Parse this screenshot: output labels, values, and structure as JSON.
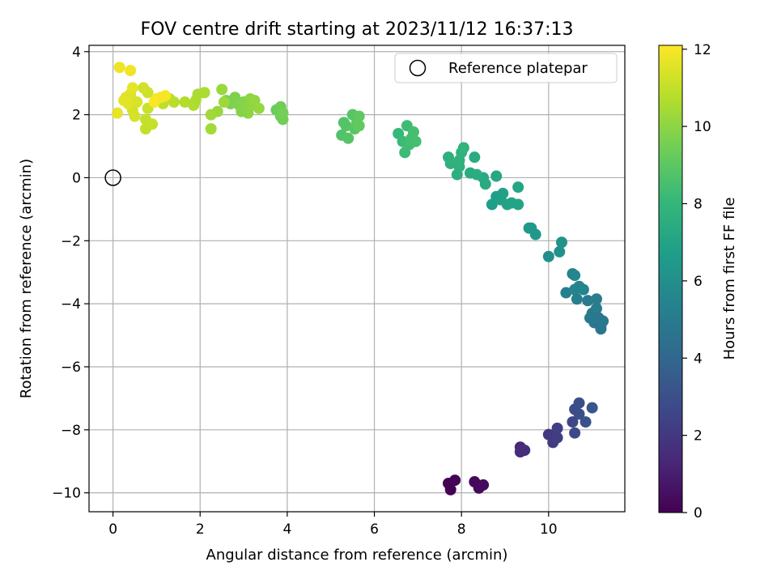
{
  "chart_data": {
    "type": "scatter",
    "title": "FOV centre drift starting at 2023/11/12 16:37:13",
    "xlabel": "Angular distance from reference (arcmin)",
    "ylabel": "Rotation from reference (arcmin)",
    "xlim": [
      -0.55,
      11.75
    ],
    "ylim": [
      -10.6,
      4.2
    ],
    "xticks": [
      0,
      2,
      4,
      6,
      8,
      10
    ],
    "yticks": [
      -10,
      -8,
      -6,
      -4,
      -2,
      0,
      2,
      4
    ],
    "tick_labels_x": [
      "0",
      "2",
      "4",
      "6",
      "8",
      "10"
    ],
    "tick_labels_y": [
      "−10",
      "−8",
      "−6",
      "−4",
      "−2",
      "0",
      "2",
      "4"
    ],
    "grid": true,
    "legend_position": "top-right",
    "legend_label": "Reference platepar",
    "reference_point": {
      "x": 0,
      "y": 0
    },
    "colorbar": {
      "label": "Hours from first FF file",
      "range": [
        0,
        12.1
      ],
      "ticks": [
        0,
        2,
        4,
        6,
        8,
        10,
        12
      ],
      "tick_labels": [
        "0",
        "2",
        "4",
        "6",
        "8",
        "10",
        "12"
      ],
      "colormap": "viridis"
    },
    "colormap_stops": [
      "#440154",
      "#482878",
      "#3e4989",
      "#31688e",
      "#26828e",
      "#1f9e89",
      "#35b779",
      "#6ece58",
      "#b5de2b",
      "#fde725"
    ],
    "points": [
      {
        "x": 7.7,
        "y": -9.7,
        "t": 0.0
      },
      {
        "x": 7.75,
        "y": -9.9,
        "t": 0.05
      },
      {
        "x": 7.85,
        "y": -9.6,
        "t": 0.1
      },
      {
        "x": 8.3,
        "y": -9.65,
        "t": 0.25
      },
      {
        "x": 8.4,
        "y": -9.85,
        "t": 0.3
      },
      {
        "x": 8.5,
        "y": -9.75,
        "t": 0.35
      },
      {
        "x": 9.35,
        "y": -8.55,
        "t": 1.4
      },
      {
        "x": 9.35,
        "y": -8.7,
        "t": 1.5
      },
      {
        "x": 9.45,
        "y": -8.65,
        "t": 1.6
      },
      {
        "x": 10.0,
        "y": -8.15,
        "t": 2.0
      },
      {
        "x": 10.1,
        "y": -8.4,
        "t": 2.1
      },
      {
        "x": 10.2,
        "y": -8.25,
        "t": 2.2
      },
      {
        "x": 10.2,
        "y": -7.95,
        "t": 2.3
      },
      {
        "x": 10.55,
        "y": -7.75,
        "t": 2.6
      },
      {
        "x": 10.6,
        "y": -8.1,
        "t": 2.7
      },
      {
        "x": 10.6,
        "y": -7.35,
        "t": 2.8
      },
      {
        "x": 10.7,
        "y": -7.5,
        "t": 2.9
      },
      {
        "x": 10.7,
        "y": -7.15,
        "t": 3.0
      },
      {
        "x": 10.85,
        "y": -7.75,
        "t": 3.1
      },
      {
        "x": 11.0,
        "y": -7.3,
        "t": 3.2
      },
      {
        "x": 10.4,
        "y": -3.65,
        "t": 5.2
      },
      {
        "x": 10.55,
        "y": -3.05,
        "t": 5.4
      },
      {
        "x": 10.6,
        "y": -3.55,
        "t": 5.5
      },
      {
        "x": 10.65,
        "y": -3.85,
        "t": 5.2
      },
      {
        "x": 10.7,
        "y": -3.45,
        "t": 5.4
      },
      {
        "x": 10.8,
        "y": -3.55,
        "t": 5.5
      },
      {
        "x": 10.9,
        "y": -3.9,
        "t": 5.0
      },
      {
        "x": 10.95,
        "y": -4.45,
        "t": 4.9
      },
      {
        "x": 11.0,
        "y": -4.3,
        "t": 4.95
      },
      {
        "x": 11.05,
        "y": -4.6,
        "t": 4.8
      },
      {
        "x": 11.1,
        "y": -4.15,
        "t": 5.0
      },
      {
        "x": 11.1,
        "y": -3.85,
        "t": 5.1
      },
      {
        "x": 11.15,
        "y": -4.45,
        "t": 4.85
      },
      {
        "x": 11.2,
        "y": -4.7,
        "t": 4.8
      },
      {
        "x": 11.2,
        "y": -4.8,
        "t": 4.75
      },
      {
        "x": 11.25,
        "y": -4.55,
        "t": 4.85
      },
      {
        "x": 10.6,
        "y": -3.1,
        "t": 5.6
      },
      {
        "x": 10.0,
        "y": -2.5,
        "t": 6.0
      },
      {
        "x": 10.25,
        "y": -2.35,
        "t": 6.1
      },
      {
        "x": 10.3,
        "y": -2.05,
        "t": 6.2
      },
      {
        "x": 9.6,
        "y": -1.6,
        "t": 6.4
      },
      {
        "x": 9.7,
        "y": -1.8,
        "t": 6.5
      },
      {
        "x": 9.55,
        "y": -1.6,
        "t": 6.45
      },
      {
        "x": 8.7,
        "y": -0.85,
        "t": 6.7
      },
      {
        "x": 8.8,
        "y": -0.6,
        "t": 6.8
      },
      {
        "x": 8.9,
        "y": -0.7,
        "t": 6.85
      },
      {
        "x": 8.95,
        "y": -0.5,
        "t": 6.9
      },
      {
        "x": 9.05,
        "y": -0.85,
        "t": 6.95
      },
      {
        "x": 9.15,
        "y": -0.8,
        "t": 7.0
      },
      {
        "x": 9.3,
        "y": -0.85,
        "t": 7.05
      },
      {
        "x": 9.3,
        "y": -0.3,
        "t": 7.1
      },
      {
        "x": 8.8,
        "y": 0.05,
        "t": 7.2
      },
      {
        "x": 8.5,
        "y": 0.0,
        "t": 7.3
      },
      {
        "x": 8.55,
        "y": -0.2,
        "t": 7.35
      },
      {
        "x": 8.2,
        "y": 0.15,
        "t": 7.4
      },
      {
        "x": 8.3,
        "y": 0.65,
        "t": 7.45
      },
      {
        "x": 8.35,
        "y": 0.1,
        "t": 7.5
      },
      {
        "x": 7.9,
        "y": 0.1,
        "t": 7.6
      },
      {
        "x": 7.7,
        "y": 0.65,
        "t": 7.65
      },
      {
        "x": 7.75,
        "y": 0.45,
        "t": 7.7
      },
      {
        "x": 7.95,
        "y": 0.55,
        "t": 7.75
      },
      {
        "x": 8.0,
        "y": 0.8,
        "t": 7.8
      },
      {
        "x": 8.05,
        "y": 0.95,
        "t": 7.85
      },
      {
        "x": 7.95,
        "y": 0.35,
        "t": 7.7
      },
      {
        "x": 6.55,
        "y": 1.4,
        "t": 8.1
      },
      {
        "x": 6.65,
        "y": 1.15,
        "t": 8.2
      },
      {
        "x": 6.7,
        "y": 0.8,
        "t": 8.25
      },
      {
        "x": 6.75,
        "y": 1.65,
        "t": 8.3
      },
      {
        "x": 6.8,
        "y": 1.05,
        "t": 8.35
      },
      {
        "x": 6.85,
        "y": 1.25,
        "t": 8.4
      },
      {
        "x": 6.9,
        "y": 1.45,
        "t": 8.45
      },
      {
        "x": 6.95,
        "y": 1.15,
        "t": 8.5
      },
      {
        "x": 5.25,
        "y": 1.35,
        "t": 8.7
      },
      {
        "x": 5.3,
        "y": 1.75,
        "t": 8.75
      },
      {
        "x": 5.35,
        "y": 1.65,
        "t": 8.8
      },
      {
        "x": 5.4,
        "y": 1.25,
        "t": 8.85
      },
      {
        "x": 5.5,
        "y": 2.0,
        "t": 8.9
      },
      {
        "x": 5.55,
        "y": 1.55,
        "t": 8.95
      },
      {
        "x": 5.6,
        "y": 1.75,
        "t": 9.0
      },
      {
        "x": 5.65,
        "y": 1.95,
        "t": 9.05
      },
      {
        "x": 5.65,
        "y": 1.65,
        "t": 9.1
      },
      {
        "x": 3.75,
        "y": 2.15,
        "t": 9.3
      },
      {
        "x": 3.85,
        "y": 1.95,
        "t": 9.35
      },
      {
        "x": 3.85,
        "y": 2.25,
        "t": 9.4
      },
      {
        "x": 3.9,
        "y": 1.85,
        "t": 9.45
      },
      {
        "x": 3.9,
        "y": 2.05,
        "t": 9.5
      },
      {
        "x": 2.6,
        "y": 2.45,
        "t": 9.6
      },
      {
        "x": 2.7,
        "y": 2.35,
        "t": 9.65
      },
      {
        "x": 2.8,
        "y": 2.55,
        "t": 9.7
      },
      {
        "x": 2.9,
        "y": 2.3,
        "t": 9.75
      },
      {
        "x": 2.95,
        "y": 2.1,
        "t": 9.8
      },
      {
        "x": 3.0,
        "y": 2.4,
        "t": 9.85
      },
      {
        "x": 3.05,
        "y": 2.15,
        "t": 9.9
      },
      {
        "x": 3.1,
        "y": 2.05,
        "t": 9.95
      },
      {
        "x": 3.15,
        "y": 2.5,
        "t": 10.0
      },
      {
        "x": 3.2,
        "y": 2.3,
        "t": 10.05
      },
      {
        "x": 3.25,
        "y": 2.45,
        "t": 10.1
      },
      {
        "x": 3.35,
        "y": 2.2,
        "t": 10.15
      },
      {
        "x": 2.4,
        "y": 2.1,
        "t": 10.2
      },
      {
        "x": 2.5,
        "y": 2.8,
        "t": 10.25
      },
      {
        "x": 2.55,
        "y": 2.4,
        "t": 10.3
      },
      {
        "x": 2.25,
        "y": 2.0,
        "t": 10.35
      },
      {
        "x": 2.25,
        "y": 1.55,
        "t": 10.4
      },
      {
        "x": 1.95,
        "y": 2.65,
        "t": 10.5
      },
      {
        "x": 2.1,
        "y": 2.7,
        "t": 10.55
      },
      {
        "x": 1.9,
        "y": 2.45,
        "t": 10.6
      },
      {
        "x": 1.85,
        "y": 2.3,
        "t": 10.65
      },
      {
        "x": 1.65,
        "y": 2.4,
        "t": 10.7
      },
      {
        "x": 1.4,
        "y": 2.4,
        "t": 10.8
      },
      {
        "x": 1.3,
        "y": 2.5,
        "t": 10.85
      },
      {
        "x": 1.15,
        "y": 2.35,
        "t": 10.9
      },
      {
        "x": 0.75,
        "y": 1.55,
        "t": 11.0
      },
      {
        "x": 0.75,
        "y": 1.85,
        "t": 11.05
      },
      {
        "x": 0.9,
        "y": 1.7,
        "t": 11.1
      },
      {
        "x": 0.8,
        "y": 2.2,
        "t": 11.15
      },
      {
        "x": 0.8,
        "y": 2.7,
        "t": 11.2
      },
      {
        "x": 0.7,
        "y": 2.85,
        "t": 11.25
      },
      {
        "x": 0.45,
        "y": 2.15,
        "t": 11.3
      },
      {
        "x": 0.5,
        "y": 1.95,
        "t": 11.35
      },
      {
        "x": 0.55,
        "y": 2.4,
        "t": 11.4
      },
      {
        "x": 0.4,
        "y": 2.65,
        "t": 11.45
      },
      {
        "x": 0.3,
        "y": 2.55,
        "t": 11.5
      },
      {
        "x": 0.35,
        "y": 2.35,
        "t": 11.55
      },
      {
        "x": 0.25,
        "y": 2.45,
        "t": 11.6
      },
      {
        "x": 0.45,
        "y": 2.85,
        "t": 11.65
      },
      {
        "x": 0.1,
        "y": 2.05,
        "t": 11.7
      },
      {
        "x": 0.15,
        "y": 3.5,
        "t": 11.8
      },
      {
        "x": 0.4,
        "y": 3.4,
        "t": 11.85
      },
      {
        "x": 1.0,
        "y": 2.5,
        "t": 11.9
      },
      {
        "x": 1.1,
        "y": 2.55,
        "t": 11.95
      },
      {
        "x": 1.2,
        "y": 2.6,
        "t": 12.0
      },
      {
        "x": 0.95,
        "y": 2.4,
        "t": 12.05
      }
    ]
  }
}
